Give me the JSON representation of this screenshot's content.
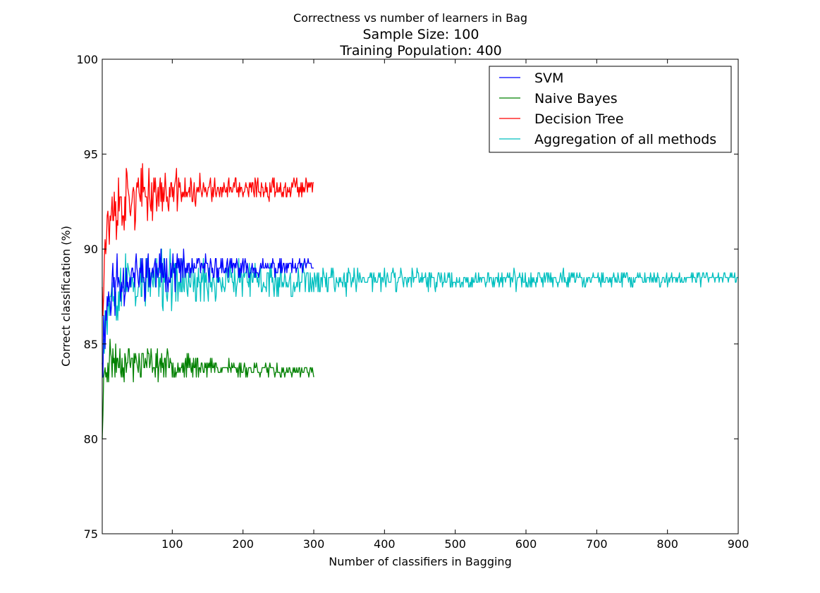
{
  "chart_data": {
    "type": "line",
    "title": "Correctness vs number of learners in Bag",
    "subtitle_lines": [
      "Sample Size: 100",
      "Training Population: 400"
    ],
    "xlabel": "Number of classifiers in Bagging",
    "ylabel": "Correct classification (%)",
    "xlim": [
      1,
      900
    ],
    "ylim": [
      75,
      100
    ],
    "xticks": [
      100,
      200,
      300,
      400,
      500,
      600,
      700,
      800,
      900
    ],
    "yticks": [
      75,
      80,
      85,
      90,
      95,
      100
    ],
    "grid": false,
    "legend_position": "top-right",
    "series": [
      {
        "name": "SVM",
        "color": "#0000ff",
        "x_start": 1,
        "x_end": 300,
        "start_value": 84.0,
        "settle_value": 88.9,
        "noise_start": 1.3,
        "noise_end": 0.25,
        "seed": 11,
        "anchors": [
          [
            1,
            84.0
          ],
          [
            5,
            86.5
          ],
          [
            10,
            87.6
          ],
          [
            20,
            88.2
          ],
          [
            50,
            88.7
          ],
          [
            100,
            88.9
          ],
          [
            150,
            89.0
          ],
          [
            200,
            89.0
          ],
          [
            250,
            89.0
          ],
          [
            300,
            89.1
          ]
        ]
      },
      {
        "name": "Naive Bayes",
        "color": "#008000",
        "x_start": 1,
        "x_end": 300,
        "start_value": 80.0,
        "settle_value": 83.7,
        "noise_start": 0.9,
        "noise_end": 0.2,
        "seed": 23,
        "anchors": [
          [
            1,
            80.0
          ],
          [
            4,
            83.5
          ],
          [
            10,
            84.2
          ],
          [
            50,
            84.0
          ],
          [
            100,
            83.9
          ],
          [
            150,
            83.8
          ],
          [
            200,
            83.7
          ],
          [
            250,
            83.6
          ],
          [
            300,
            83.5
          ]
        ]
      },
      {
        "name": "Decision Tree",
        "color": "#ff0000",
        "x_start": 1,
        "x_end": 300,
        "start_value": 88.0,
        "settle_value": 93.1,
        "noise_start": 1.4,
        "noise_end": 0.3,
        "seed": 37,
        "anchors": [
          [
            1,
            88.0
          ],
          [
            5,
            90.5
          ],
          [
            10,
            91.5
          ],
          [
            30,
            92.5
          ],
          [
            60,
            92.9
          ],
          [
            100,
            93.0
          ],
          [
            150,
            93.1
          ],
          [
            200,
            93.1
          ],
          [
            250,
            93.2
          ],
          [
            300,
            93.4
          ]
        ]
      },
      {
        "name": "Aggregation of all methods",
        "color": "#00bfbf",
        "x_start": 1,
        "x_end": 900,
        "start_value": 84.0,
        "settle_value": 88.5,
        "noise_start": 1.2,
        "noise_end": 0.2,
        "seed": 53,
        "anchors": [
          [
            1,
            84.0
          ],
          [
            5,
            86.5
          ],
          [
            10,
            87.5
          ],
          [
            30,
            88.2
          ],
          [
            100,
            88.3
          ],
          [
            200,
            88.3
          ],
          [
            300,
            88.4
          ],
          [
            400,
            88.4
          ],
          [
            500,
            88.4
          ],
          [
            600,
            88.4
          ],
          [
            700,
            88.4
          ],
          [
            800,
            88.4
          ],
          [
            870,
            88.5
          ],
          [
            900,
            88.5
          ]
        ]
      }
    ]
  }
}
